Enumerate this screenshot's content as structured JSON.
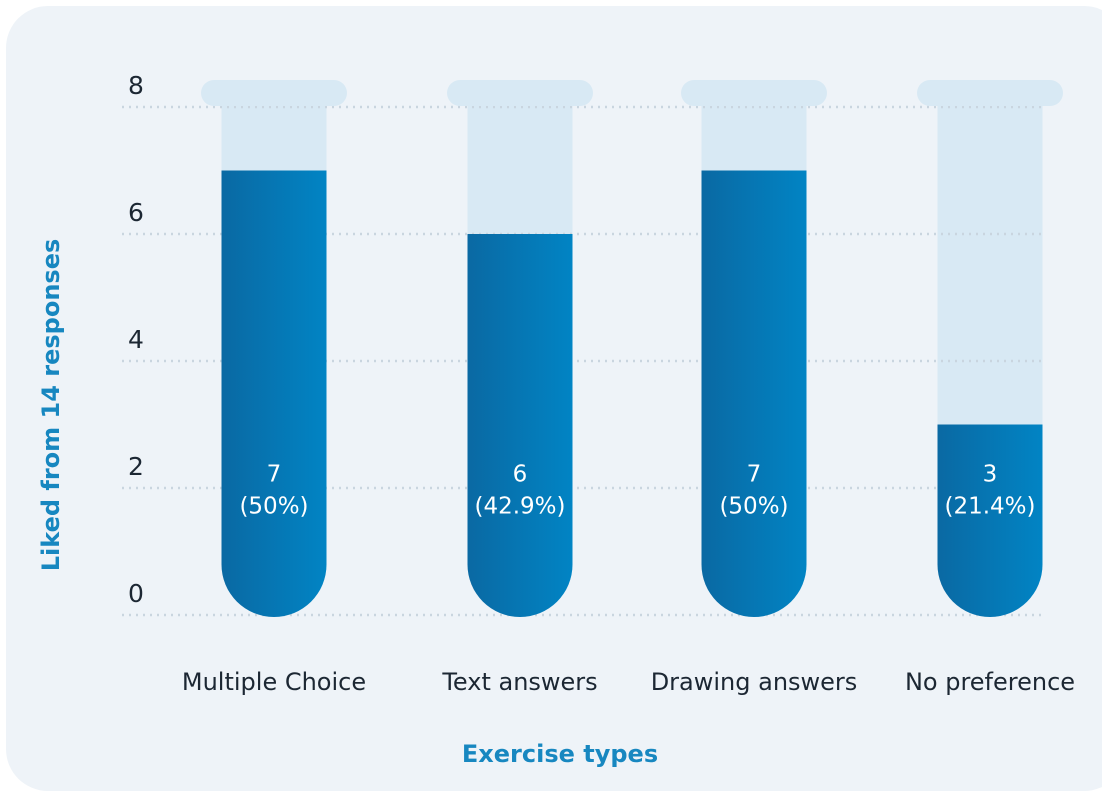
{
  "chart_data": {
    "type": "bar",
    "categories": [
      "Multiple Choice",
      "Text answers",
      "Drawing answers",
      "No preference"
    ],
    "values": [
      7,
      6,
      7,
      3
    ],
    "value_labels": [
      [
        "7",
        "(50%)"
      ],
      [
        "6",
        "(42.9%)"
      ],
      [
        "7",
        "(50%)"
      ],
      [
        "3",
        "(21.4%)"
      ]
    ],
    "color": "#0a7ab8",
    "ylim": [
      0,
      8
    ],
    "yticks": [
      0,
      2,
      4,
      6,
      8
    ],
    "grid": true,
    "ylabel": "Liked from 14 responses",
    "xlabel": "Exercise types"
  }
}
